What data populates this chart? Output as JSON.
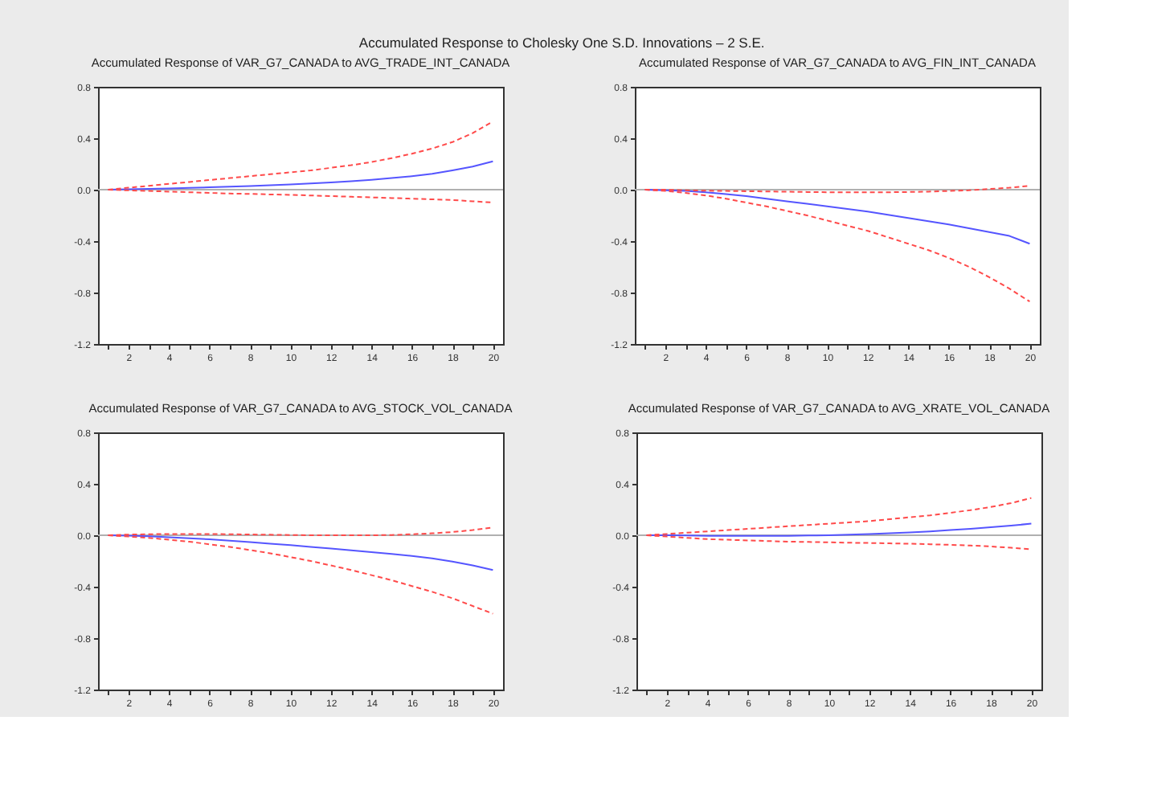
{
  "chart_data": [
    {
      "type": "line",
      "title": "Accumulated Response to Cholesky One S.D. Innovations – 2 S.E.",
      "subtitle": "Accumulated Response of VAR_G7_CANADA to AVG_TRADE_INT_CANADA",
      "x": [
        1,
        2,
        3,
        4,
        5,
        6,
        7,
        8,
        9,
        10,
        11,
        12,
        13,
        14,
        15,
        16,
        17,
        18,
        19,
        20
      ],
      "xlim": [
        0.5,
        20.5
      ],
      "xticks": [
        {
          "value": 1,
          "label": null
        },
        2,
        {
          "value": 3,
          "label": null
        },
        4,
        {
          "value": 5,
          "label": null
        },
        6,
        {
          "value": 7,
          "label": null
        },
        8,
        {
          "value": 9,
          "label": null
        },
        10,
        {
          "value": 11,
          "label": null
        },
        12,
        {
          "value": 13,
          "label": null
        },
        14,
        {
          "value": 15,
          "label": null
        },
        16,
        {
          "value": 17,
          "label": null
        },
        18,
        {
          "value": 19,
          "label": null
        },
        20
      ],
      "ylim": [
        -1.2,
        0.8
      ],
      "yticks": [
        {
          "value": -1.2,
          "label": "-1.2"
        },
        {
          "value": -0.8,
          "label": "-0.8"
        },
        {
          "value": -0.4,
          "label": "-0.4"
        },
        {
          "value": 0,
          "label": "0.0"
        },
        {
          "value": 0.4,
          "label": "0.4"
        },
        {
          "value": 0.8,
          "label": "0.8"
        }
      ],
      "grid": false,
      "ref_lines": [
        {
          "axis": "y",
          "value": 0,
          "color": "#b0b0b0"
        }
      ],
      "series": [
        {
          "color": "#5555ff",
          "line_style": "solid",
          "values": [
            0,
            0.003,
            0.006,
            0.01,
            0.014,
            0.018,
            0.023,
            0.028,
            0.034,
            0.04,
            0.048,
            0.056,
            0.066,
            0.077,
            0.09,
            0.105,
            0.123,
            0.15,
            0.18,
            0.22
          ]
        },
        {
          "color": "#ff4a4a",
          "line_style": "dashed",
          "values": [
            0,
            0.015,
            0.03,
            0.045,
            0.06,
            0.075,
            0.09,
            0.105,
            0.12,
            0.135,
            0.15,
            0.17,
            0.19,
            0.215,
            0.245,
            0.28,
            0.32,
            0.37,
            0.44,
            0.53
          ]
        },
        {
          "color": "#ff4a4a",
          "line_style": "dashed",
          "values": [
            0,
            -0.005,
            -0.01,
            -0.015,
            -0.02,
            -0.025,
            -0.03,
            -0.033,
            -0.037,
            -0.04,
            -0.045,
            -0.05,
            -0.055,
            -0.06,
            -0.065,
            -0.07,
            -0.075,
            -0.08,
            -0.09,
            -0.1
          ]
        }
      ]
    },
    {
      "type": "line",
      "title": "Accumulated Response of VAR_G7_CANADA to AVG_FIN_INT_CANADA",
      "x": [
        1,
        2,
        3,
        4,
        5,
        6,
        7,
        8,
        9,
        10,
        11,
        12,
        13,
        14,
        15,
        16,
        17,
        18,
        19,
        20
      ],
      "xlim": [
        0.5,
        20.5
      ],
      "xticks": [
        {
          "value": 1,
          "label": null
        },
        2,
        {
          "value": 3,
          "label": null
        },
        4,
        {
          "value": 5,
          "label": null
        },
        6,
        {
          "value": 7,
          "label": null
        },
        8,
        {
          "value": 9,
          "label": null
        },
        10,
        {
          "value": 11,
          "label": null
        },
        12,
        {
          "value": 13,
          "label": null
        },
        14,
        {
          "value": 15,
          "label": null
        },
        16,
        {
          "value": 17,
          "label": null
        },
        18,
        {
          "value": 19,
          "label": null
        },
        20
      ],
      "ylim": [
        -1.2,
        0.8
      ],
      "yticks": [
        {
          "value": -1.2,
          "label": "-1.2"
        },
        {
          "value": -0.8,
          "label": "-0.8"
        },
        {
          "value": -0.4,
          "label": "-0.4"
        },
        {
          "value": 0,
          "label": "0.0"
        },
        {
          "value": 0.4,
          "label": "0.4"
        },
        {
          "value": 0.8,
          "label": "0.8"
        }
      ],
      "grid": false,
      "ref_lines": [
        {
          "axis": "y",
          "value": 0,
          "color": "#b0b0b0"
        }
      ],
      "series": [
        {
          "color": "#5555ff",
          "line_style": "solid",
          "values": [
            0,
            -0.004,
            -0.01,
            -0.02,
            -0.035,
            -0.05,
            -0.07,
            -0.09,
            -0.11,
            -0.13,
            -0.15,
            -0.17,
            -0.195,
            -0.22,
            -0.245,
            -0.27,
            -0.3,
            -0.33,
            -0.36,
            -0.42
          ]
        },
        {
          "color": "#ff4a4a",
          "line_style": "dashed",
          "values": [
            0,
            -0.01,
            -0.025,
            -0.045,
            -0.07,
            -0.1,
            -0.13,
            -0.165,
            -0.2,
            -0.24,
            -0.28,
            -0.32,
            -0.37,
            -0.42,
            -0.47,
            -0.53,
            -0.6,
            -0.68,
            -0.77,
            -0.87
          ]
        },
        {
          "color": "#ff4a4a",
          "line_style": "dashed",
          "values": [
            0,
            0,
            -0.005,
            -0.008,
            -0.01,
            -0.012,
            -0.014,
            -0.016,
            -0.018,
            -0.02,
            -0.02,
            -0.02,
            -0.02,
            -0.018,
            -0.015,
            -0.01,
            -0.005,
            0.005,
            0.015,
            0.03
          ]
        }
      ]
    },
    {
      "type": "line",
      "title": "Accumulated Response of VAR_G7_CANADA to AVG_STOCK_VOL_CANADA",
      "x": [
        1,
        2,
        3,
        4,
        5,
        6,
        7,
        8,
        9,
        10,
        11,
        12,
        13,
        14,
        15,
        16,
        17,
        18,
        19,
        20
      ],
      "xlim": [
        0.5,
        20.5
      ],
      "xticks": [
        {
          "value": 1,
          "label": null
        },
        2,
        {
          "value": 3,
          "label": null
        },
        4,
        {
          "value": 5,
          "label": null
        },
        6,
        {
          "value": 7,
          "label": null
        },
        8,
        {
          "value": 9,
          "label": null
        },
        10,
        {
          "value": 11,
          "label": null
        },
        12,
        {
          "value": 13,
          "label": null
        },
        14,
        {
          "value": 15,
          "label": null
        },
        16,
        {
          "value": 17,
          "label": null
        },
        18,
        {
          "value": 19,
          "label": null
        },
        20
      ],
      "ylim": [
        -1.2,
        0.8
      ],
      "yticks": [
        {
          "value": -1.2,
          "label": "-1.2"
        },
        {
          "value": -0.8,
          "label": "-0.8"
        },
        {
          "value": -0.4,
          "label": "-0.4"
        },
        {
          "value": 0,
          "label": "0.0"
        },
        {
          "value": 0.4,
          "label": "0.4"
        },
        {
          "value": 0.8,
          "label": "0.8"
        }
      ],
      "grid": false,
      "ref_lines": [
        {
          "axis": "y",
          "value": 0,
          "color": "#b0b0b0"
        }
      ],
      "series": [
        {
          "color": "#5555ff",
          "line_style": "solid",
          "values": [
            0,
            -0.003,
            -0.008,
            -0.015,
            -0.023,
            -0.032,
            -0.042,
            -0.053,
            -0.065,
            -0.077,
            -0.09,
            -0.103,
            -0.117,
            -0.131,
            -0.146,
            -0.161,
            -0.18,
            -0.205,
            -0.235,
            -0.27
          ]
        },
        {
          "color": "#ff4a4a",
          "line_style": "dashed",
          "values": [
            0,
            -0.01,
            -0.02,
            -0.035,
            -0.05,
            -0.07,
            -0.09,
            -0.115,
            -0.14,
            -0.17,
            -0.2,
            -0.235,
            -0.27,
            -0.31,
            -0.35,
            -0.395,
            -0.44,
            -0.49,
            -0.55,
            -0.61
          ]
        },
        {
          "color": "#ff4a4a",
          "line_style": "dashed",
          "values": [
            0,
            0.005,
            0.008,
            0.01,
            0.01,
            0.01,
            0.008,
            0.006,
            0.004,
            0.002,
            0,
            0,
            0,
            0,
            0.002,
            0.008,
            0.015,
            0.025,
            0.04,
            0.06
          ]
        }
      ]
    },
    {
      "type": "line",
      "title": "Accumulated Response of VAR_G7_CANADA to AVG_XRATE_VOL_CANADA",
      "x": [
        1,
        2,
        3,
        4,
        5,
        6,
        7,
        8,
        9,
        10,
        11,
        12,
        13,
        14,
        15,
        16,
        17,
        18,
        19,
        20
      ],
      "xlim": [
        0.5,
        20.5
      ],
      "xticks": [
        {
          "value": 1,
          "label": null
        },
        2,
        {
          "value": 3,
          "label": null
        },
        4,
        {
          "value": 5,
          "label": null
        },
        6,
        {
          "value": 7,
          "label": null
        },
        8,
        {
          "value": 9,
          "label": null
        },
        10,
        {
          "value": 11,
          "label": null
        },
        12,
        {
          "value": 13,
          "label": null
        },
        14,
        {
          "value": 15,
          "label": null
        },
        16,
        {
          "value": 17,
          "label": null
        },
        18,
        {
          "value": 19,
          "label": null
        },
        20
      ],
      "ylim": [
        -1.2,
        0.8
      ],
      "yticks": [
        {
          "value": -1.2,
          "label": "-1.2"
        },
        {
          "value": -0.8,
          "label": "-0.8"
        },
        {
          "value": -0.4,
          "label": "-0.4"
        },
        {
          "value": 0,
          "label": "0.0"
        },
        {
          "value": 0.4,
          "label": "0.4"
        },
        {
          "value": 0.8,
          "label": "0.8"
        }
      ],
      "grid": false,
      "ref_lines": [
        {
          "axis": "y",
          "value": 0,
          "color": "#b0b0b0"
        }
      ],
      "series": [
        {
          "color": "#5555ff",
          "line_style": "solid",
          "values": [
            0,
            0,
            -0.002,
            -0.004,
            -0.005,
            -0.005,
            -0.005,
            -0.004,
            -0.002,
            0,
            0.004,
            0.009,
            0.015,
            0.022,
            0.03,
            0.04,
            0.05,
            0.062,
            0.075,
            0.09
          ]
        },
        {
          "color": "#ff4a4a",
          "line_style": "dashed",
          "values": [
            0,
            0.01,
            0.02,
            0.03,
            0.04,
            0.05,
            0.06,
            0.07,
            0.08,
            0.09,
            0.1,
            0.11,
            0.125,
            0.14,
            0.155,
            0.175,
            0.195,
            0.22,
            0.25,
            0.29
          ]
        },
        {
          "color": "#ff4a4a",
          "line_style": "dashed",
          "values": [
            0,
            -0.01,
            -0.02,
            -0.03,
            -0.035,
            -0.04,
            -0.045,
            -0.05,
            -0.052,
            -0.055,
            -0.058,
            -0.06,
            -0.063,
            -0.066,
            -0.07,
            -0.074,
            -0.08,
            -0.087,
            -0.097,
            -0.11
          ]
        }
      ]
    }
  ]
}
